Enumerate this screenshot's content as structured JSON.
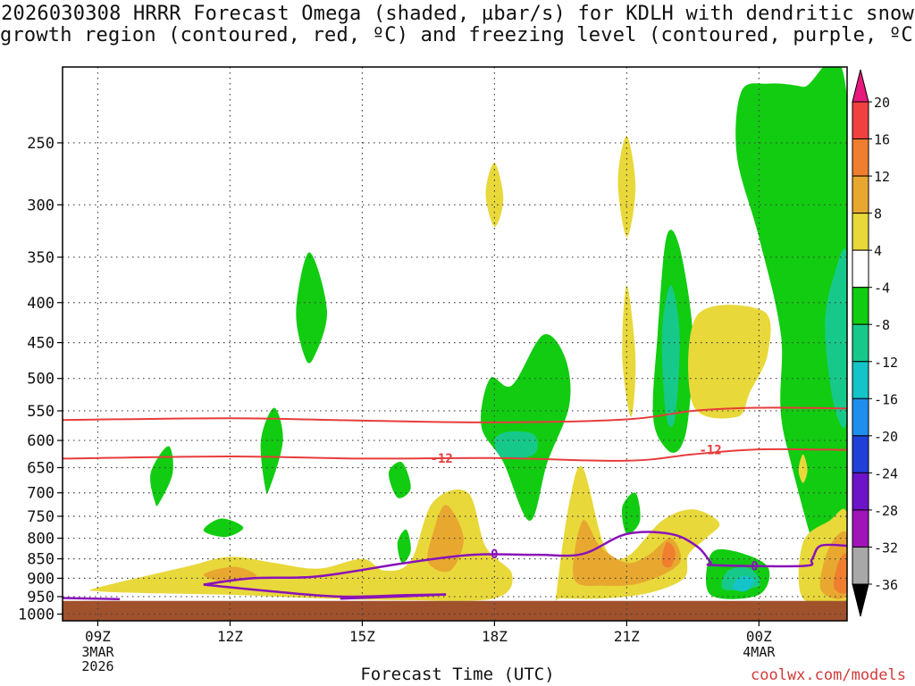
{
  "title_line1": "2026030308 HRRR Forecast Omega (shaded, µbar/s) for KDLH with dendritic snow",
  "title_line2": "growth region (contoured, red, ºC) and freezing level (contoured, purple, ºC)",
  "credit": "coolwx.com/models",
  "chart_data": {
    "type": "time-height cross section (filled contour)",
    "xlabel": "Forecast Time (UTC)",
    "x_ticks": [
      {
        "label": "09Z",
        "sub": [
          "3MAR",
          "2026"
        ],
        "hour": 0
      },
      {
        "label": "12Z",
        "sub": [],
        "hour": 3
      },
      {
        "label": "15Z",
        "sub": [],
        "hour": 6
      },
      {
        "label": "18Z",
        "sub": [],
        "hour": 9
      },
      {
        "label": "21Z",
        "sub": [],
        "hour": 12
      },
      {
        "label": "00Z",
        "sub": [
          "4MAR"
        ],
        "hour": 15
      }
    ],
    "x_range_hours": [
      -0.8,
      17.0
    ],
    "ylabel": "",
    "y_scale": "log-pressure (hPa), inverted",
    "y_ticks": [
      250,
      300,
      350,
      400,
      450,
      500,
      550,
      600,
      650,
      700,
      750,
      800,
      850,
      900,
      950,
      1000
    ],
    "y_range_hpa": [
      200,
      1020
    ],
    "grid": true,
    "colorbar": {
      "labels": [
        "20",
        "16",
        "12",
        "8",
        "4",
        "-4",
        "-8",
        "-12",
        "-16",
        "-20",
        "-24",
        "-28",
        "-32",
        "-36"
      ],
      "colors": [
        "#e8197c",
        "#f04040",
        "#ef7f2f",
        "#e8a830",
        "#e8d83a",
        "#ffffff",
        "#11cc11",
        "#16c98a",
        "#14c4c8",
        "#1f8fee",
        "#2040d8",
        "#6e14c8",
        "#a014b8",
        "#a8a8a8",
        "#000000"
      ]
    },
    "contour_labels": [
      {
        "text": "-12",
        "color": "#e83c3c",
        "hour": 7.8,
        "hpa": 632
      },
      {
        "text": "-12",
        "color": "#e83c3c",
        "hour": 13.9,
        "hpa": 617
      },
      {
        "text": "0",
        "color": "#8a12b8",
        "hour": 9.0,
        "hpa": 838
      },
      {
        "text": "0",
        "color": "#8a12b8",
        "hour": 14.9,
        "hpa": 868
      }
    ],
    "dendritic_contours_red": [
      {
        "points": [
          [
            -0.8,
            565
          ],
          [
            3,
            562
          ],
          [
            6,
            566
          ],
          [
            9,
            569
          ],
          [
            12,
            564
          ],
          [
            13.5,
            550
          ],
          [
            15,
            545
          ],
          [
            17,
            546
          ]
        ]
      },
      {
        "points": [
          [
            -0.8,
            633
          ],
          [
            3,
            629
          ],
          [
            6,
            633
          ],
          [
            9,
            632
          ],
          [
            12,
            637
          ],
          [
            13.5,
            625
          ],
          [
            15,
            616
          ],
          [
            17,
            617
          ]
        ]
      }
    ],
    "freezing_level_contours_purple": [
      {
        "points": [
          [
            -0.8,
            954
          ],
          [
            0.5,
            957
          ]
        ]
      },
      {
        "points": [
          [
            2.4,
            917
          ],
          [
            3.5,
            900
          ],
          [
            5,
            895
          ],
          [
            7,
            860
          ],
          [
            8.5,
            840
          ],
          [
            10,
            840
          ],
          [
            11,
            838
          ],
          [
            12,
            790
          ],
          [
            13,
            790
          ],
          [
            13.6,
            820
          ],
          [
            13.9,
            858
          ],
          [
            14,
            866
          ],
          [
            16,
            868
          ],
          [
            16.2,
            852
          ],
          [
            16.4,
            818
          ],
          [
            17,
            818
          ]
        ]
      },
      {
        "points": [
          [
            2.4,
            917
          ],
          [
            4,
            936
          ],
          [
            5.5,
            950
          ],
          [
            7,
            946
          ],
          [
            7.9,
            944
          ]
        ]
      },
      {
        "points": [
          [
            5.5,
            956
          ],
          [
            7,
            949
          ],
          [
            7.9,
            944
          ]
        ]
      }
    ],
    "omega_regions": [
      {
        "level": "-4",
        "color": "#11cc11",
        "points": [
          [
            16,
            212
          ],
          [
            17,
            220
          ],
          [
            17,
            950
          ],
          [
            15.6,
            600
          ],
          [
            15.5,
            440
          ],
          [
            15,
            330
          ],
          [
            14.5,
            260
          ],
          [
            14.6,
            215
          ],
          [
            15.2,
            210
          ]
        ]
      },
      {
        "level": "-8",
        "color": "#16c98a",
        "points": [
          [
            17,
            350
          ],
          [
            16.7,
            370
          ],
          [
            16.5,
            430
          ],
          [
            16.7,
            540
          ],
          [
            17,
            560
          ]
        ]
      },
      {
        "level": "-4",
        "color": "#11cc11",
        "points": [
          [
            12.9,
            615
          ],
          [
            12.6,
            560
          ],
          [
            12.7,
            440
          ],
          [
            12.9,
            330
          ],
          [
            13.2,
            340
          ],
          [
            13.5,
            440
          ],
          [
            13.4,
            560
          ],
          [
            13.2,
            615
          ]
        ]
      },
      {
        "level": "-8",
        "color": "#16c98a",
        "points": [
          [
            12.9,
            560
          ],
          [
            12.8,
            440
          ],
          [
            13.0,
            380
          ],
          [
            13.2,
            440
          ],
          [
            13.1,
            560
          ]
        ]
      },
      {
        "level": "-4",
        "color": "#11cc11",
        "points": [
          [
            9.8,
            760
          ],
          [
            9.2,
            640
          ],
          [
            8.7,
            575
          ],
          [
            8.9,
            500
          ],
          [
            9.4,
            510
          ],
          [
            10.1,
            440
          ],
          [
            10.6,
            470
          ],
          [
            10.7,
            540
          ],
          [
            10.2,
            640
          ]
        ]
      },
      {
        "level": "-8",
        "color": "#16c98a",
        "points": [
          [
            9.0,
            600
          ],
          [
            9.3,
            585
          ],
          [
            9.9,
            590
          ],
          [
            9.9,
            625
          ],
          [
            9.2,
            632
          ]
        ]
      },
      {
        "level": "-4",
        "color": "#11cc11",
        "points": [
          [
            4.7,
            470
          ],
          [
            4.5,
            410
          ],
          [
            4.8,
            345
          ],
          [
            5.2,
            410
          ],
          [
            4.9,
            470
          ]
        ]
      },
      {
        "level": "-4",
        "color": "#11cc11",
        "points": [
          [
            3.8,
            690
          ],
          [
            3.7,
            600
          ],
          [
            4.0,
            545
          ],
          [
            4.2,
            600
          ],
          [
            3.9,
            690
          ]
        ]
      },
      {
        "level": "-4",
        "color": "#11cc11",
        "points": [
          [
            1.3,
            720
          ],
          [
            1.2,
            660
          ],
          [
            1.6,
            610
          ],
          [
            1.7,
            660
          ],
          [
            1.4,
            720
          ]
        ]
      },
      {
        "level": "-4",
        "color": "#11cc11",
        "points": [
          [
            2.4,
            782
          ],
          [
            2.8,
            755
          ],
          [
            3.3,
            775
          ],
          [
            2.9,
            797
          ]
        ]
      },
      {
        "level": "-4",
        "color": "#11cc11",
        "points": [
          [
            6.8,
            710
          ],
          [
            6.6,
            660
          ],
          [
            6.9,
            640
          ],
          [
            7.1,
            690
          ]
        ]
      },
      {
        "level": "-4",
        "color": "#11cc11",
        "points": [
          [
            6.9,
            860
          ],
          [
            6.8,
            810
          ],
          [
            7.0,
            780
          ],
          [
            7.1,
            830
          ]
        ]
      },
      {
        "level": "-4",
        "color": "#11cc11",
        "points": [
          [
            12.0,
            790
          ],
          [
            11.9,
            730
          ],
          [
            12.2,
            700
          ],
          [
            12.3,
            760
          ]
        ]
      },
      {
        "level": "-4",
        "color": "#11cc11",
        "points": [
          [
            13.9,
            945
          ],
          [
            13.9,
            840
          ],
          [
            14.4,
            830
          ],
          [
            15.2,
            870
          ],
          [
            15.0,
            945
          ]
        ]
      },
      {
        "level": "-8",
        "color": "#16c98a",
        "points": [
          [
            14.2,
            930
          ],
          [
            14.3,
            880
          ],
          [
            14.8,
            875
          ],
          [
            15.0,
            920
          ]
        ]
      },
      {
        "level": "-12",
        "color": "#14c4c8",
        "points": [
          [
            14.4,
            925
          ],
          [
            14.6,
            895
          ],
          [
            14.9,
            905
          ],
          [
            14.7,
            935
          ]
        ]
      },
      {
        "level": "4",
        "color": "#e8d83a",
        "points": [
          [
            0,
            925
          ],
          [
            2,
            870
          ],
          [
            3,
            845
          ],
          [
            4,
            860
          ],
          [
            5,
            875
          ],
          [
            6,
            850
          ],
          [
            6.5,
            880
          ],
          [
            7.1,
            855
          ],
          [
            7.6,
            720
          ],
          [
            8.4,
            700
          ],
          [
            8.8,
            820
          ],
          [
            9.4,
            890
          ],
          [
            9,
            955
          ],
          [
            7,
            960
          ],
          [
            5,
            955
          ],
          [
            3,
            945
          ],
          [
            1,
            940
          ],
          [
            0,
            935
          ]
        ]
      },
      {
        "level": "8",
        "color": "#e8a830",
        "points": [
          [
            2.4,
            890
          ],
          [
            3.1,
            870
          ],
          [
            3.6,
            895
          ],
          [
            2.9,
            910
          ]
        ]
      },
      {
        "level": "8",
        "color": "#e8a830",
        "points": [
          [
            7.5,
            860
          ],
          [
            7.6,
            790
          ],
          [
            7.9,
            725
          ],
          [
            8.3,
            800
          ],
          [
            8.0,
            880
          ]
        ]
      },
      {
        "level": "4",
        "color": "#e8d83a",
        "points": [
          [
            10.4,
            950
          ],
          [
            10.7,
            720
          ],
          [
            11.0,
            650
          ],
          [
            11.5,
            820
          ],
          [
            12,
            845
          ],
          [
            12.8,
            760
          ],
          [
            13.5,
            735
          ],
          [
            14.1,
            765
          ],
          [
            13.8,
            800
          ],
          [
            13.4,
            840
          ],
          [
            13.3,
            900
          ],
          [
            12.5,
            940
          ],
          [
            11.5,
            955
          ],
          [
            10.5,
            955
          ]
        ]
      },
      {
        "level": "8",
        "color": "#e8a830",
        "points": [
          [
            10.8,
            900
          ],
          [
            11.0,
            760
          ],
          [
            11.4,
            820
          ],
          [
            12,
            860
          ],
          [
            12.5,
            840
          ],
          [
            13.0,
            800
          ],
          [
            13.2,
            860
          ],
          [
            12.4,
            910
          ],
          [
            11.5,
            920
          ]
        ]
      },
      {
        "level": "12",
        "color": "#ef7f2f",
        "points": [
          [
            12.8,
            860
          ],
          [
            12.9,
            810
          ],
          [
            13.1,
            830
          ],
          [
            13.0,
            870
          ]
        ]
      },
      {
        "level": "4",
        "color": "#e8d83a",
        "points": [
          [
            16.0,
            955
          ],
          [
            16.0,
            810
          ],
          [
            16.6,
            760
          ],
          [
            17,
            745
          ],
          [
            17,
            955
          ]
        ]
      },
      {
        "level": "8",
        "color": "#e8a830",
        "points": [
          [
            16.4,
            930
          ],
          [
            16.6,
            820
          ],
          [
            17,
            790
          ],
          [
            17,
            945
          ]
        ]
      },
      {
        "level": "12",
        "color": "#ef7f2f",
        "points": [
          [
            16.7,
            925
          ],
          [
            16.8,
            860
          ],
          [
            17,
            840
          ],
          [
            17,
            935
          ]
        ]
      },
      {
        "level": "4",
        "color": "#e8d83a",
        "points": [
          [
            13.5,
            540
          ],
          [
            13.6,
            415
          ],
          [
            15.1,
            410
          ],
          [
            15.2,
            465
          ],
          [
            14.8,
            520
          ],
          [
            14.5,
            560
          ]
        ]
      },
      {
        "level": "4",
        "color": "#e8d83a",
        "points": [
          [
            9.0,
            320
          ],
          [
            8.8,
            290
          ],
          [
            9.0,
            265
          ],
          [
            9.2,
            295
          ]
        ]
      },
      {
        "level": "4",
        "color": "#e8d83a",
        "points": [
          [
            12.0,
            330
          ],
          [
            11.8,
            280
          ],
          [
            12.0,
            245
          ],
          [
            12.2,
            285
          ]
        ]
      },
      {
        "level": "4",
        "color": "#e8d83a",
        "points": [
          [
            12.1,
            560
          ],
          [
            11.9,
            470
          ],
          [
            12.0,
            380
          ],
          [
            12.2,
            470
          ]
        ]
      },
      {
        "level": "4",
        "color": "#e8d83a",
        "points": [
          [
            16.0,
            680
          ],
          [
            15.9,
            655
          ],
          [
            16.0,
            625
          ],
          [
            16.1,
            655
          ]
        ]
      }
    ],
    "ground": {
      "color": "#a0522d",
      "from_hpa": 962
    }
  }
}
